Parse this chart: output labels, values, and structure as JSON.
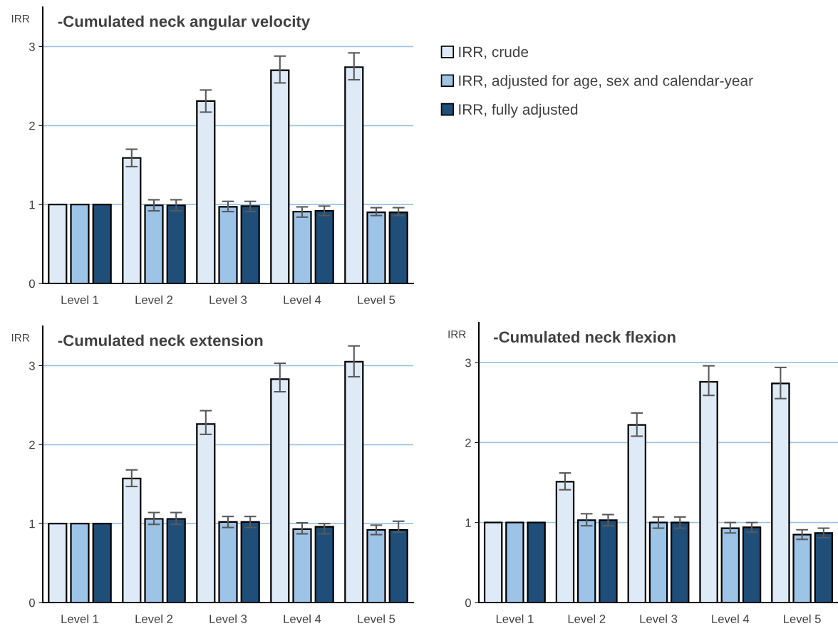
{
  "chart_data": [
    {
      "type": "bar",
      "title": "-Cumulated neck angular velocity",
      "ylabel": "IRR",
      "categories": [
        "Level 1",
        "Level 2",
        "Level 3",
        "Level 4",
        "Level 5"
      ],
      "ylim": [
        0,
        3.5
      ],
      "yticks": [
        0,
        1,
        2,
        3
      ],
      "grid": "y",
      "legend": "right",
      "series": [
        {
          "name": "IRR, crude",
          "color": "#deeaf6",
          "values": [
            1,
            1.59,
            2.31,
            2.7,
            2.74
          ],
          "errors": [
            null,
            [
              1.48,
              1.7
            ],
            [
              2.17,
              2.45
            ],
            [
              2.54,
              2.88
            ],
            [
              2.58,
              2.92
            ]
          ]
        },
        {
          "name": "IRR, adjusted for age, sex and calendar-year",
          "color": "#9dc3e6",
          "values": [
            1,
            0.99,
            0.97,
            0.91,
            0.9
          ],
          "errors": [
            null,
            [
              0.92,
              1.06
            ],
            [
              0.91,
              1.04
            ],
            [
              0.84,
              0.97
            ],
            [
              0.86,
              0.96
            ]
          ]
        },
        {
          "name": "IRR, fully adjusted",
          "color": "#1f4e79",
          "values": [
            1,
            0.99,
            0.98,
            0.92,
            0.9
          ],
          "errors": [
            null,
            [
              0.92,
              1.06
            ],
            [
              0.91,
              1.04
            ],
            [
              0.86,
              0.98
            ],
            [
              0.86,
              0.96
            ]
          ]
        }
      ]
    },
    {
      "type": "bar",
      "title": "-Cumulated neck extension",
      "ylabel": "IRR",
      "categories": [
        "Level 1",
        "Level 2",
        "Level 3",
        "Level 4",
        "Level 5"
      ],
      "ylim": [
        0,
        3.5
      ],
      "yticks": [
        0,
        1,
        2,
        3
      ],
      "grid": "y",
      "series": [
        {
          "color": "#deeaf6",
          "values": [
            1,
            1.57,
            2.26,
            2.83,
            3.05
          ],
          "errors": [
            null,
            [
              1.47,
              1.68
            ],
            [
              2.13,
              2.43
            ],
            [
              2.67,
              3.03
            ],
            [
              2.86,
              3.25
            ]
          ]
        },
        {
          "color": "#9dc3e6",
          "values": [
            1,
            1.06,
            1.02,
            0.93,
            0.92
          ],
          "errors": [
            null,
            [
              0.99,
              1.14
            ],
            [
              0.95,
              1.09
            ],
            [
              0.87,
              1.01
            ],
            [
              0.86,
              0.98
            ]
          ]
        },
        {
          "color": "#1f4e79",
          "values": [
            1,
            1.06,
            1.02,
            0.96,
            0.92
          ],
          "errors": [
            null,
            [
              0.99,
              1.14
            ],
            [
              0.95,
              1.09
            ],
            [
              0.87,
              1.0
            ],
            [
              0.89,
              1.03
            ]
          ]
        }
      ]
    },
    {
      "type": "bar",
      "title": "-Cumulated neck flexion",
      "ylabel": "IRR",
      "categories": [
        "Level 1",
        "Level 2",
        "Level 3",
        "Level 4",
        "Level 5"
      ],
      "ylim": [
        0,
        3.5
      ],
      "yticks": [
        0,
        1,
        2,
        3
      ],
      "grid": "y",
      "series": [
        {
          "color": "#deeaf6",
          "values": [
            1,
            1.51,
            2.22,
            2.76,
            2.74
          ],
          "errors": [
            null,
            [
              1.41,
              1.62
            ],
            [
              2.08,
              2.37
            ],
            [
              2.59,
              2.96
            ],
            [
              2.55,
              2.94
            ]
          ]
        },
        {
          "color": "#9dc3e6",
          "values": [
            1,
            1.03,
            1.0,
            0.93,
            0.85
          ],
          "errors": [
            null,
            [
              0.96,
              1.11
            ],
            [
              0.93,
              1.07
            ],
            [
              0.87,
              1.0
            ],
            [
              0.79,
              0.91
            ]
          ]
        },
        {
          "color": "#1f4e79",
          "values": [
            1,
            1.03,
            1.0,
            0.94,
            0.87
          ],
          "errors": [
            null,
            [
              0.96,
              1.1
            ],
            [
              0.93,
              1.07
            ],
            [
              0.88,
              1.0
            ],
            [
              0.81,
              0.93
            ]
          ]
        }
      ]
    }
  ]
}
